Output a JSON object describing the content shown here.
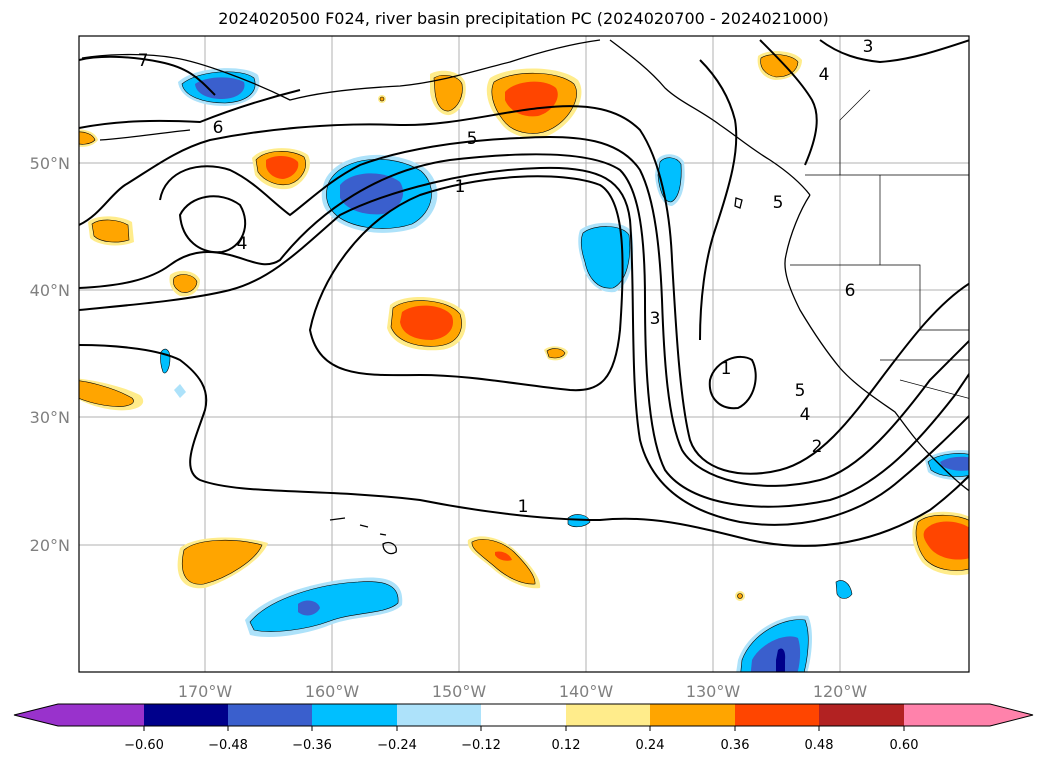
{
  "title": "2024020500 F024, river basin precipitation PC (2024020700 - 2024021000)",
  "map": {
    "lat_labels": [
      "50°N",
      "40°N",
      "30°N",
      "20°N"
    ],
    "lon_labels": [
      "170°W",
      "160°W",
      "150°W",
      "140°W",
      "130°W",
      "120°W"
    ],
    "contour_labels": [
      "7",
      "6",
      "5",
      "1",
      "4",
      "3",
      "1",
      "1",
      "2",
      "4",
      "5",
      "6",
      "3",
      "4",
      "5"
    ]
  },
  "colorbar": {
    "ticks": [
      "−0.60",
      "−0.48",
      "−0.36",
      "−0.24",
      "−0.12",
      "0.12",
      "0.24",
      "0.36",
      "0.48",
      "0.60"
    ],
    "colors": [
      "#9932CC",
      "#00008B",
      "#3A5FCD",
      "#00BFFF",
      "#ADE2FA",
      "#FFFFFF",
      "#FFEC8B",
      "#FFA500",
      "#FF4500",
      "#B22222",
      "#FF82AB"
    ]
  }
}
